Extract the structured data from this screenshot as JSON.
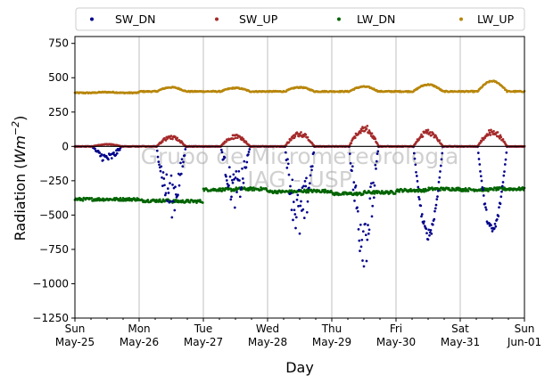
{
  "chart_data": {
    "type": "scatter",
    "ylabel_prefix": "Radiation (",
    "ylabel_math": "Wm",
    "ylabel_sup": "−2",
    "ylabel_suffix": ")",
    "xlabel": "Day",
    "ylim": [
      -1250,
      800
    ],
    "yticks": [
      750,
      500,
      250,
      0,
      -250,
      -500,
      -750,
      -1000,
      -1250
    ],
    "ytick_labels": [
      "750",
      "500",
      "250",
      "0",
      "−250",
      "−500",
      "−750",
      "−1000",
      "−1250"
    ],
    "xlim_days": [
      0,
      7
    ],
    "xticks": [
      {
        "day": 0,
        "line1": "Sun",
        "line2": "May-25"
      },
      {
        "day": 1,
        "line1": "Mon",
        "line2": "May-26"
      },
      {
        "day": 2,
        "line1": "Tue",
        "line2": "May-27"
      },
      {
        "day": 3,
        "line1": "Wed",
        "line2": "May-28"
      },
      {
        "day": 4,
        "line1": "Thu",
        "line2": "May-29"
      },
      {
        "day": 5,
        "line1": "Fri",
        "line2": "May-30"
      },
      {
        "day": 6,
        "line1": "Sat",
        "line2": "May-31"
      },
      {
        "day": 7,
        "line1": "Sun",
        "line2": "Jun-01"
      }
    ],
    "grid": "vertical",
    "zero_line": true,
    "legend_placement": "top, outside",
    "watermark_line1": "Grupo de Micrometeorologia",
    "watermark_line2": "IAG - USP",
    "series": [
      {
        "name": "SW_DN",
        "color": "#00008b",
        "peaks": [
          -120,
          -520,
          -450,
          -720,
          -880,
          -680,
          -650
        ],
        "daily_mean": [
          -90,
          -240,
          -260,
          -380,
          -430,
          -560,
          -560
        ]
      },
      {
        "name": "SW_UP",
        "color": "#a52a2a",
        "peaks": [
          18,
          80,
          85,
          110,
          160,
          125,
          125
        ],
        "daily_mean": [
          12,
          55,
          65,
          75,
          95,
          115,
          115
        ]
      },
      {
        "name": "LW_DN",
        "color": "#006400",
        "nightly_levels": [
          -385,
          -395,
          -315,
          -330,
          -345,
          -320,
          -315
        ],
        "daytime_levels": [
          -385,
          -400,
          -310,
          -325,
          -335,
          -310,
          -310
        ]
      },
      {
        "name": "LW_UP",
        "color": "#b8860b",
        "nightly_levels": [
          390,
          400,
          400,
          400,
          400,
          400,
          400
        ],
        "daytime_peaks": [
          395,
          430,
          425,
          430,
          435,
          450,
          475
        ]
      }
    ]
  }
}
